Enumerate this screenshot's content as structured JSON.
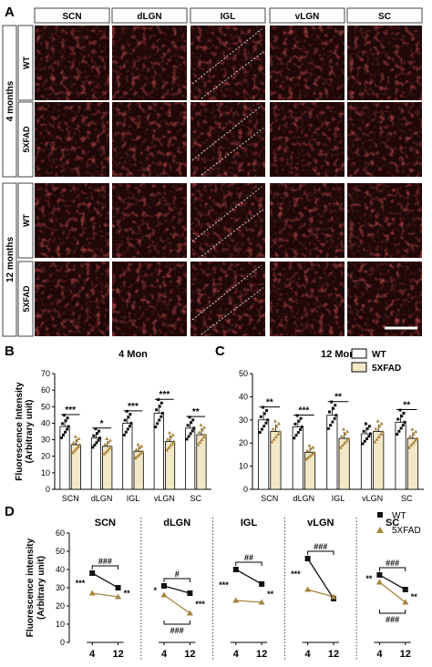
{
  "panel_labels": {
    "a": "A",
    "b": "B",
    "c": "C",
    "d": "D"
  },
  "panelA": {
    "columns": [
      "SCN",
      "dLGN",
      "IGL",
      "vLGN",
      "SC"
    ],
    "groups": [
      {
        "age": "4 months",
        "rows": [
          "WT",
          "5XFAD"
        ]
      },
      {
        "age": "12 months",
        "rows": [
          "WT",
          "5XFAD"
        ]
      }
    ],
    "tile_color": "#200808",
    "signal_color": "#d81e1e"
  },
  "legend": {
    "wt": "WT",
    "fad": "5XFAD"
  },
  "colors": {
    "wt_bar": "#ffffff",
    "fad_bar": "#f3e8c6",
    "wt_point": "#111111",
    "fad_point": "#a8843a"
  },
  "chart_data": [
    {
      "type": "bar",
      "id": "B",
      "title": "4 Mon",
      "ylabel": "Fluorescence Intensity\n(Arbitrary unit)",
      "ylim": [
        0,
        70
      ],
      "yticks": [
        0,
        10,
        20,
        30,
        40,
        50,
        60,
        70
      ],
      "categories": [
        "SCN",
        "dLGN",
        "IGL",
        "vLGN",
        "SC"
      ],
      "series": [
        {
          "name": "WT",
          "values": [
            38,
            31,
            40,
            46,
            37
          ]
        },
        {
          "name": "5XFAD",
          "values": [
            27,
            26,
            23,
            29,
            33
          ]
        }
      ],
      "significance": [
        "***",
        "*",
        "***",
        "***",
        "**"
      ]
    },
    {
      "type": "bar",
      "id": "C",
      "title": "12 Mon",
      "ylim": [
        0,
        50
      ],
      "yticks": [
        0,
        10,
        20,
        30,
        40,
        50
      ],
      "categories": [
        "SCN",
        "dLGN",
        "IGL",
        "vLGN",
        "SC"
      ],
      "series": [
        {
          "name": "WT",
          "values": [
            30,
            27,
            32,
            24,
            29
          ]
        },
        {
          "name": "5XFAD",
          "values": [
            25,
            16,
            22,
            25,
            22
          ]
        }
      ],
      "significance": [
        "**",
        "***",
        "**",
        "",
        "**"
      ]
    },
    {
      "type": "line",
      "id": "D",
      "ylabel": "Fluorescence intensity\n(Arbitrary unit)",
      "ylim": [
        0,
        60
      ],
      "yticks": [
        0,
        10,
        20,
        30,
        40,
        50,
        60
      ],
      "x": [
        4,
        12
      ],
      "xlabels": [
        "4",
        "12"
      ],
      "subplots": [
        {
          "title": "SCN",
          "wt": [
            38,
            30
          ],
          "fad": [
            27,
            25
          ],
          "ann_4": "***",
          "ann_12": "**",
          "top": "###",
          "bottom": ""
        },
        {
          "title": "dLGN",
          "wt": [
            31,
            27
          ],
          "fad": [
            26,
            16
          ],
          "ann_4": "*",
          "ann_12": "***",
          "top": "#",
          "bottom": "###"
        },
        {
          "title": "IGL",
          "wt": [
            40,
            32
          ],
          "fad": [
            23,
            22
          ],
          "ann_4": "***",
          "ann_12": "**",
          "top": "##",
          "bottom": ""
        },
        {
          "title": "vLGN",
          "wt": [
            46,
            24
          ],
          "fad": [
            29,
            25
          ],
          "ann_4": "***",
          "ann_12": "",
          "top": "###",
          "bottom": ""
        },
        {
          "title": "SC",
          "wt": [
            37,
            29
          ],
          "fad": [
            33,
            22
          ],
          "ann_4": "**",
          "ann_12": "**",
          "top": "###",
          "bottom": "###"
        }
      ]
    }
  ]
}
